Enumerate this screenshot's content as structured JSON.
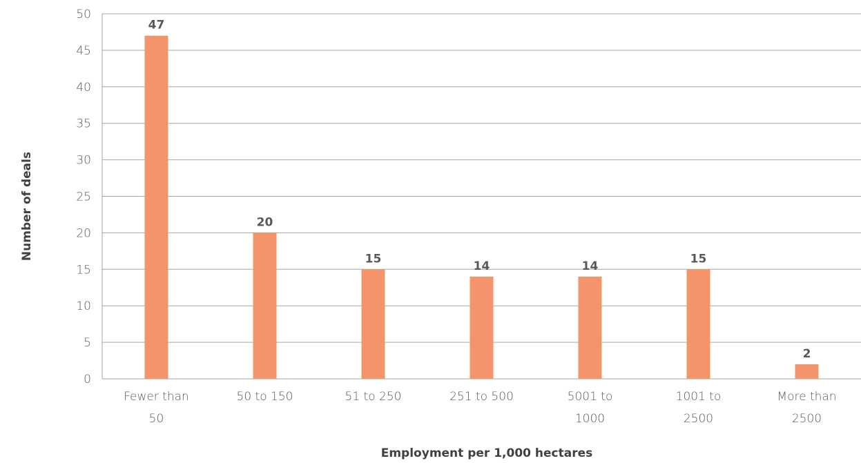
{
  "chart_data": {
    "type": "bar",
    "title": "",
    "xlabel": "Employment per 1,000 hectares",
    "ylabel": "Number of deals",
    "categories": [
      [
        "Fewer than",
        "50"
      ],
      [
        "50 to 150"
      ],
      [
        "51 to 250"
      ],
      [
        "251 to 500"
      ],
      [
        "5001 to",
        "1000"
      ],
      [
        "1001 to",
        "2500"
      ],
      [
        "More than",
        "2500"
      ]
    ],
    "values": [
      47,
      20,
      15,
      14,
      14,
      15,
      2
    ],
    "ylim": [
      0,
      50
    ],
    "yticks": [
      0,
      5,
      10,
      15,
      20,
      25,
      30,
      35,
      40,
      45,
      50
    ],
    "grid": true,
    "legend": "none",
    "bar_color": "#f4946a",
    "text_color": "#595959",
    "grid_color": "#a6a6a6"
  }
}
